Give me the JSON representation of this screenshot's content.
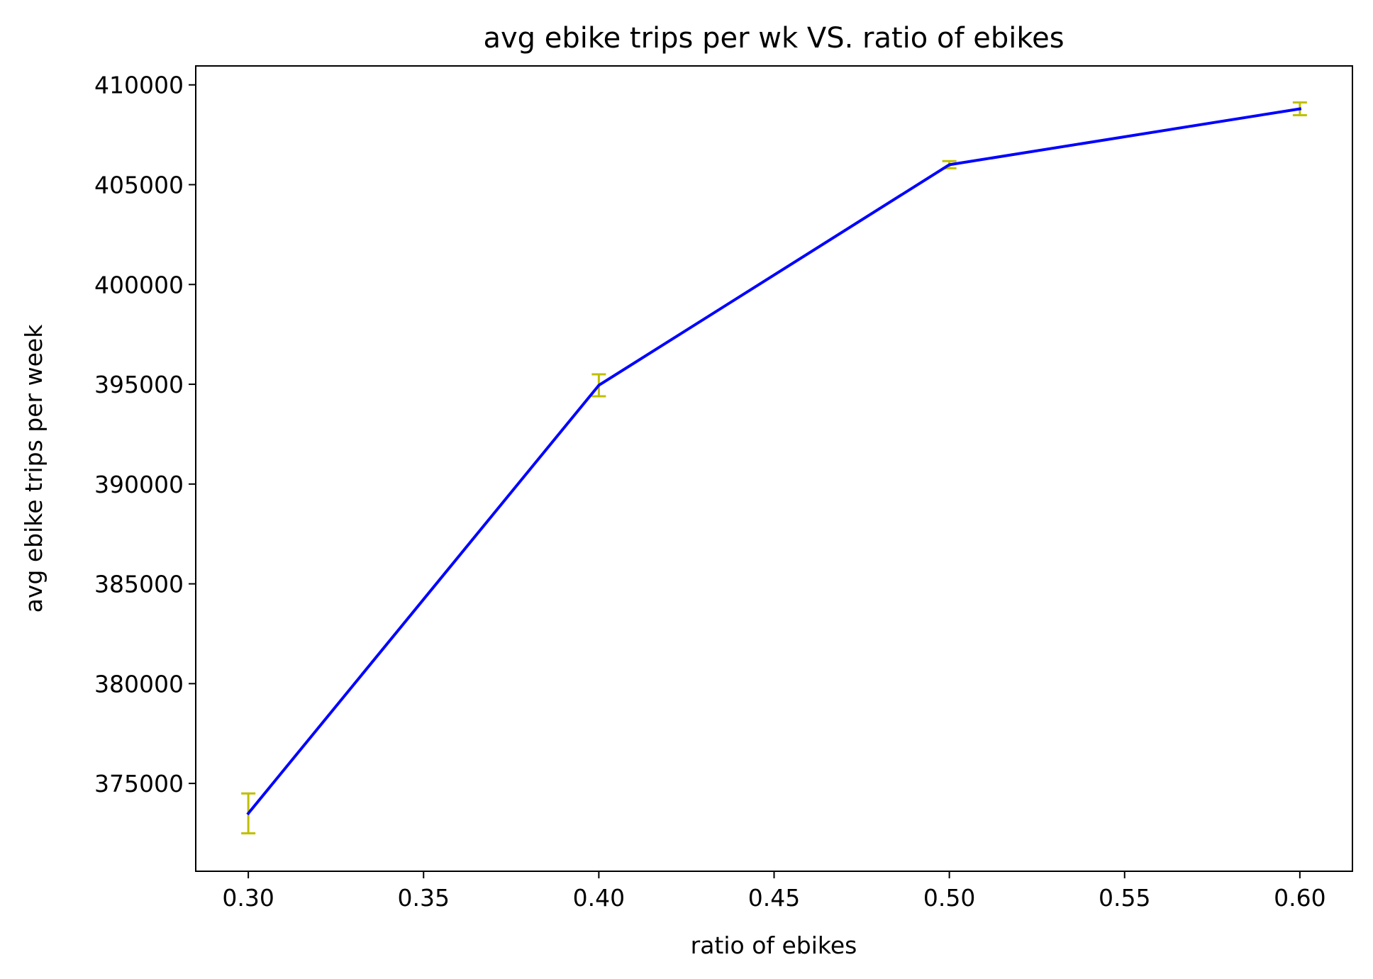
{
  "chart_data": {
    "type": "line",
    "title": "avg ebike trips per wk VS. ratio of ebikes",
    "xlabel": "ratio of ebikes",
    "ylabel": "avg ebike trips per week",
    "xlim": [
      0.285,
      0.615
    ],
    "ylim": [
      370600,
      410950
    ],
    "xticks": [
      0.3,
      0.35,
      0.4,
      0.45,
      0.5,
      0.55,
      0.6
    ],
    "xtick_labels": [
      "0.30",
      "0.35",
      "0.40",
      "0.45",
      "0.50",
      "0.55",
      "0.60"
    ],
    "yticks": [
      375000,
      380000,
      385000,
      390000,
      395000,
      400000,
      405000,
      410000
    ],
    "ytick_labels": [
      "375000",
      "380000",
      "385000",
      "390000",
      "395000",
      "400000",
      "405000",
      "410000"
    ],
    "grid": false,
    "series": [
      {
        "x": [
          0.3,
          0.4,
          0.5,
          0.6
        ],
        "y": [
          373500,
          394950,
          406000,
          408800
        ],
        "yerr": [
          1000,
          550,
          180,
          320
        ],
        "line_color": "#0000ff",
        "errorbar_color": "#bfbf00"
      }
    ]
  }
}
